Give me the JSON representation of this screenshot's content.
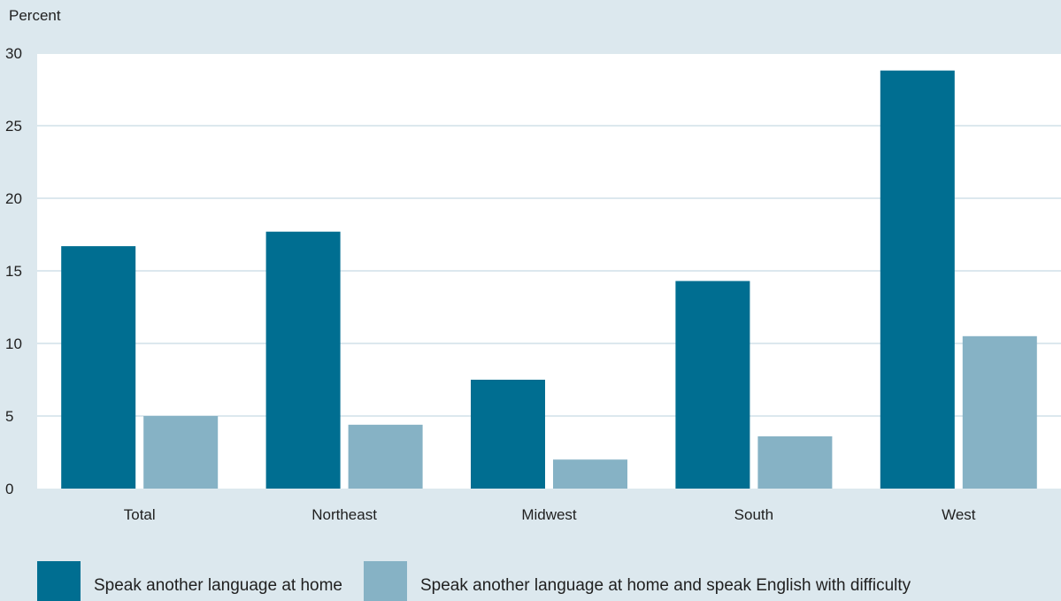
{
  "chart_data": {
    "type": "bar",
    "ylabel": "Percent",
    "categories": [
      "Total",
      "Northeast",
      "Midwest",
      "South",
      "West"
    ],
    "series": [
      {
        "name": "Speak another language at home",
        "color": "#006e91",
        "values": [
          16.7,
          17.7,
          7.5,
          14.3,
          28.8
        ]
      },
      {
        "name": "Speak another language at home and speak English with difficulty",
        "color": "#86b2c5",
        "values": [
          5.0,
          4.4,
          2.0,
          3.6,
          10.5
        ]
      }
    ],
    "ylim": [
      0,
      30
    ],
    "yticks": [
      0,
      5,
      10,
      15,
      20,
      25,
      30
    ],
    "grid": true,
    "legend_position": "bottom-left"
  }
}
